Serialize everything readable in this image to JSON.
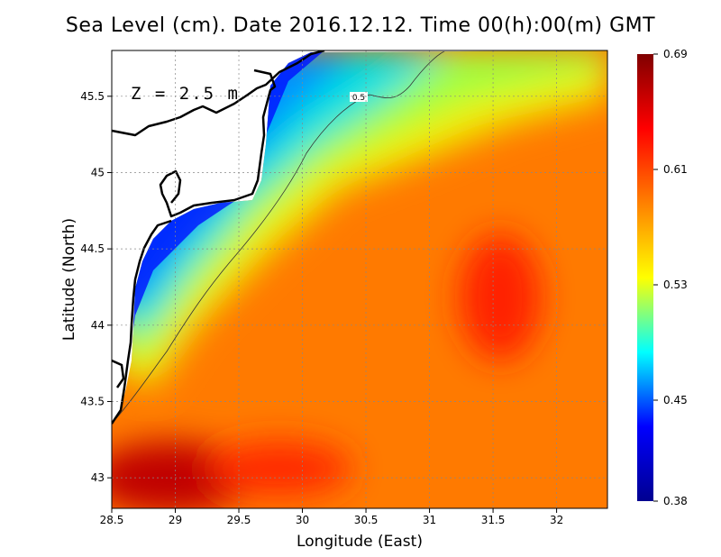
{
  "chart_data": {
    "type": "heatmap",
    "title": "Sea Level (cm). Date 2016.12.12. Time 00(h):00(m) GMT",
    "xlabel": "Longitude (East)",
    "ylabel": "Latitude (North)",
    "annotation": "Z = 2.5 m",
    "contour_label": "0.5",
    "xlim": [
      28.5,
      32.4
    ],
    "ylim": [
      42.8,
      45.8
    ],
    "x_ticks": [
      "28.5",
      "29",
      "29.5",
      "30",
      "30.5",
      "31",
      "31.5",
      "32"
    ],
    "y_ticks": [
      "43",
      "43.5",
      "44",
      "44.5",
      "45",
      "45.5"
    ],
    "grid": true,
    "colorbar": {
      "min": 0.38,
      "max": 0.69,
      "tick_labels": [
        "0.69",
        "0.61",
        "0.53",
        "0.45",
        "0.38"
      ],
      "colors": [
        "#000090",
        "#0000ff",
        "#00ffff",
        "#ffff00",
        "#ff8000",
        "#ff0000",
        "#800000"
      ]
    }
  }
}
